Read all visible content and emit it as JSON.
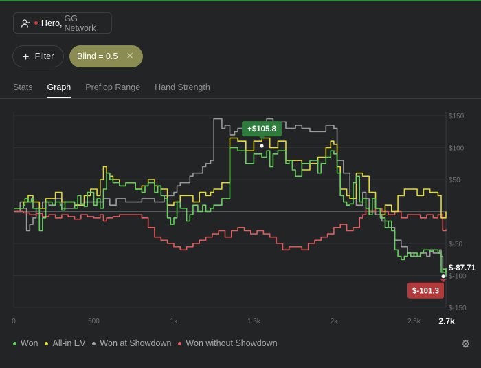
{
  "player": {
    "name": "Hero",
    "network": "GG Network",
    "icon": "user-icon"
  },
  "filter": {
    "label": "Filter",
    "icon": "plus-icon"
  },
  "active_filter": {
    "label": "Blind = 0.5",
    "remove_icon": "close-icon"
  },
  "tabs": [
    {
      "label": "Stats",
      "active": false
    },
    {
      "label": "Graph",
      "active": true
    },
    {
      "label": "Preflop Range",
      "active": false
    },
    {
      "label": "Hand Strength",
      "active": false
    }
  ],
  "legend": [
    {
      "label": "Won",
      "color": "#66d05e"
    },
    {
      "label": "All-in EV",
      "color": "#e2d93a"
    },
    {
      "label": "Won at Showdown",
      "color": "#9b9b9b"
    },
    {
      "label": "Won without Showdown",
      "color": "#e05d5d"
    }
  ],
  "settings_icon": "gear-icon",
  "chart_data": {
    "type": "line",
    "x_tick_labels": [
      "0",
      "500",
      "1k",
      "1.5k",
      "2k",
      "2.5k"
    ],
    "x_max_label": "2.7k",
    "xlim": [
      0,
      2700
    ],
    "x_ticks": [
      0,
      500,
      1000,
      1500,
      2000,
      2500
    ],
    "y_tick_labels": [
      "$150",
      "$100",
      "$50",
      "",
      "$-50",
      "$-100",
      "$-150"
    ],
    "y_ticks": [
      150,
      100,
      50,
      0,
      -50,
      -100,
      -150
    ],
    "ylim": [
      -150,
      150
    ],
    "grid": true,
    "legend_position": "bottom",
    "peak_label": {
      "text": "+$105.8",
      "x": 1550,
      "y": 105.8
    },
    "end_labels": [
      {
        "text": "$-87.71",
        "series": "Won at Showdown",
        "y": -87.71
      },
      {
        "text": "$-101.3",
        "series": "Won",
        "y": -101.3
      }
    ],
    "series": [
      {
        "name": "Won",
        "color": "#66d05e",
        "x": [
          0,
          60,
          70,
          90,
          110,
          120,
          160,
          180,
          200,
          240,
          260,
          290,
          300,
          320,
          380,
          400,
          420,
          440,
          460,
          500,
          520,
          540,
          560,
          580,
          600,
          620,
          660,
          700,
          760,
          800,
          820,
          840,
          880,
          900,
          920,
          940,
          960,
          980,
          1000,
          1020,
          1040,
          1080,
          1100,
          1120,
          1150,
          1180,
          1200,
          1230,
          1250,
          1300,
          1350,
          1400,
          1450,
          1500,
          1550,
          1580,
          1600,
          1620,
          1650,
          1700,
          1720,
          1740,
          1760,
          1800,
          1850,
          1900,
          1920,
          1950,
          1980,
          2000,
          2020,
          2040,
          2060,
          2080,
          2100,
          2120,
          2140,
          2160,
          2180,
          2200,
          2220,
          2240,
          2260,
          2290,
          2320,
          2340,
          2360,
          2380,
          2400,
          2420,
          2440,
          2460,
          2480,
          2500,
          2520,
          2540,
          2560,
          2580,
          2600,
          2620,
          2650,
          2670,
          2680,
          2700
        ],
        "y": [
          5,
          10,
          20,
          15,
          20,
          5,
          -30,
          -10,
          15,
          10,
          15,
          10,
          2,
          15,
          5,
          25,
          12,
          8,
          30,
          10,
          20,
          5,
          35,
          60,
          50,
          45,
          40,
          45,
          35,
          30,
          40,
          45,
          30,
          40,
          25,
          20,
          -10,
          -20,
          -10,
          15,
          5,
          -15,
          -5,
          10,
          0,
          10,
          0,
          5,
          10,
          20,
          100,
          95,
          75,
          90,
          85,
          95,
          70,
          90,
          95,
          75,
          80,
          65,
          55,
          75,
          80,
          60,
          75,
          85,
          95,
          90,
          60,
          25,
          15,
          10,
          12,
          45,
          55,
          15,
          20,
          5,
          -5,
          20,
          5,
          -10,
          -25,
          -15,
          -30,
          -60,
          -70,
          -75,
          -70,
          -65,
          -70,
          -65,
          -70,
          -65,
          -60,
          -60,
          -62,
          -60,
          -65,
          -95,
          -90,
          -101.3
        ]
      },
      {
        "name": "All-in EV",
        "color": "#e2d93a",
        "x": [
          0,
          60,
          90,
          120,
          160,
          200,
          260,
          300,
          380,
          440,
          480,
          520,
          540,
          560,
          580,
          600,
          620,
          660,
          700,
          760,
          800,
          840,
          880,
          920,
          960,
          1000,
          1040,
          1080,
          1120,
          1160,
          1200,
          1230,
          1250,
          1300,
          1350,
          1400,
          1450,
          1500,
          1550,
          1600,
          1650,
          1700,
          1740,
          1800,
          1850,
          1900,
          1950,
          1980,
          2000,
          2020,
          2040,
          2080,
          2100,
          2140,
          2180,
          2220,
          2260,
          2290,
          2320,
          2360,
          2400,
          2440,
          2480,
          2520,
          2560,
          2600,
          2620,
          2650,
          2670,
          2700
        ],
        "y": [
          5,
          15,
          25,
          15,
          5,
          20,
          30,
          15,
          10,
          25,
          35,
          25,
          50,
          70,
          60,
          55,
          50,
          40,
          45,
          35,
          40,
          50,
          40,
          35,
          10,
          15,
          25,
          25,
          15,
          30,
          25,
          30,
          35,
          45,
          115,
          110,
          95,
          110,
          115,
          100,
          110,
          80,
          80,
          65,
          75,
          85,
          100,
          110,
          105,
          70,
          35,
          25,
          20,
          60,
          55,
          30,
          5,
          -5,
          10,
          0,
          25,
          35,
          35,
          25,
          35,
          30,
          30,
          25,
          -10,
          0
        ]
      },
      {
        "name": "Won at Showdown",
        "color": "#9b9b9b",
        "x": [
          0,
          40,
          60,
          80,
          100,
          120,
          140,
          180,
          220,
          260,
          300,
          380,
          440,
          500,
          560,
          600,
          640,
          700,
          760,
          800,
          880,
          940,
          1000,
          1020,
          1040,
          1080,
          1100,
          1120,
          1140,
          1180,
          1200,
          1230,
          1250,
          1300,
          1320,
          1350,
          1380,
          1400,
          1450,
          1500,
          1550,
          1580,
          1620,
          1700,
          1760,
          1800,
          1850,
          1900,
          1950,
          2000,
          2020,
          2060,
          2100,
          2140,
          2180,
          2200,
          2220,
          2260,
          2300,
          2340,
          2380,
          2420,
          2460,
          2500,
          2540,
          2580,
          2600,
          2620,
          2660,
          2670,
          2680,
          2700
        ],
        "y": [
          0,
          15,
          5,
          -30,
          -20,
          -10,
          5,
          15,
          10,
          20,
          5,
          10,
          15,
          15,
          20,
          10,
          20,
          15,
          15,
          20,
          15,
          25,
          30,
          40,
          45,
          45,
          55,
          60,
          60,
          70,
          75,
          80,
          145,
          130,
          135,
          120,
          125,
          130,
          130,
          135,
          125,
          145,
          140,
          130,
          135,
          130,
          125,
          125,
          135,
          130,
          80,
          60,
          20,
          10,
          30,
          20,
          0,
          -5,
          -15,
          -25,
          -45,
          -55,
          -65,
          -70,
          -65,
          -70,
          -60,
          -65,
          -60,
          -70,
          -95,
          -87.71
        ]
      },
      {
        "name": "Won without Showdown",
        "color": "#e05d5d",
        "x": [
          0,
          60,
          100,
          140,
          180,
          220,
          260,
          300,
          340,
          380,
          420,
          460,
          500,
          540,
          560,
          580,
          620,
          660,
          700,
          760,
          800,
          840,
          880,
          920,
          960,
          1000,
          1040,
          1080,
          1120,
          1160,
          1200,
          1240,
          1280,
          1320,
          1360,
          1400,
          1440,
          1480,
          1520,
          1560,
          1600,
          1640,
          1680,
          1720,
          1760,
          1800,
          1840,
          1880,
          1920,
          1960,
          2000,
          2040,
          2080,
          2120,
          2160,
          2180,
          2200,
          2220,
          2260,
          2300,
          2340,
          2380,
          2420,
          2460,
          2500,
          2540,
          2580,
          2600,
          2620,
          2650,
          2680,
          2700
        ],
        "y": [
          0,
          -2,
          -5,
          -3,
          -8,
          -5,
          -10,
          -5,
          -8,
          -12,
          -5,
          -8,
          -10,
          -5,
          -15,
          -10,
          -8,
          -5,
          -5,
          -5,
          -10,
          -25,
          -40,
          -45,
          -50,
          -55,
          -60,
          -55,
          -50,
          -45,
          -40,
          -35,
          -30,
          -40,
          -30,
          -25,
          -30,
          -35,
          -30,
          -35,
          -40,
          -50,
          -60,
          -55,
          -55,
          -60,
          -50,
          -45,
          -40,
          -35,
          -25,
          -20,
          -30,
          -25,
          -10,
          -5,
          5,
          0,
          5,
          0,
          -5,
          0,
          -10,
          -5,
          -5,
          -10,
          -5,
          -5,
          -10,
          -5,
          -30,
          -28
        ]
      }
    ]
  }
}
